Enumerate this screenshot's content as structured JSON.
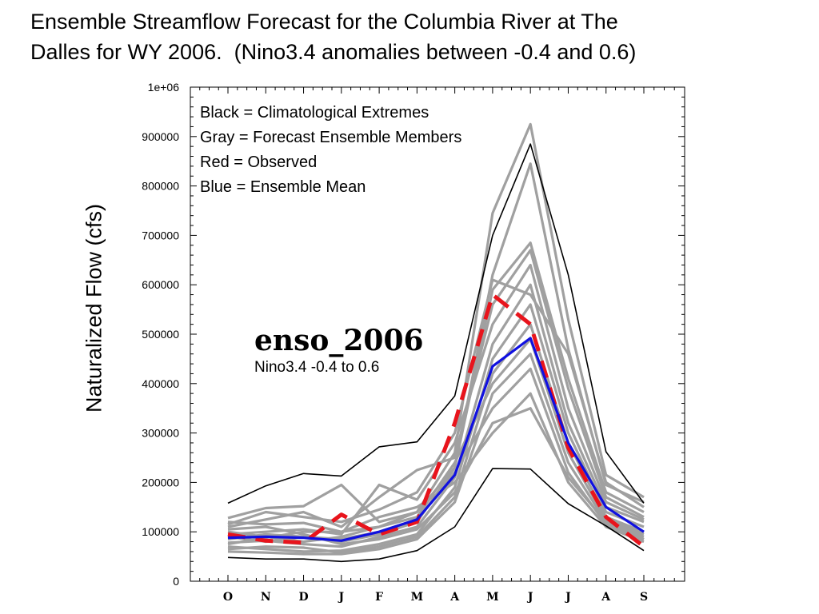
{
  "title_line1": "Ensemble Streamflow Forecast for the Columbia River at The",
  "title_line2": "Dalles for WY 2006.  (Nino3.4 anomalies between -0.4 and 0.6)",
  "chart_data": {
    "type": "line",
    "ylabel": "Naturalized Flow (cfs)",
    "ylim": [
      0,
      1000000
    ],
    "yticks": [
      0,
      100000,
      200000,
      300000,
      400000,
      500000,
      600000,
      700000,
      800000,
      900000,
      1000000
    ],
    "ytick_labels": [
      "0",
      "100000",
      "200000",
      "300000",
      "400000",
      "500000",
      "600000",
      "700000",
      "800000",
      "900000",
      "1e+06"
    ],
    "categories": [
      "O",
      "N",
      "D",
      "J",
      "F",
      "M",
      "A",
      "M",
      "J",
      "J",
      "A",
      "S"
    ],
    "legend": [
      "Black = Climatological Extremes",
      "Gray = Forecast Ensemble Members",
      "Red = Observed",
      "Blue = Ensemble Mean"
    ],
    "annotation_main": "enso_2006",
    "annotation_sub": "Nino3.4  -0.4 to 0.6",
    "colors": {
      "extremes": "#000000",
      "members": "#a0a0a0",
      "observed": "#e8141c",
      "mean": "#1010e0"
    },
    "series": [
      {
        "name": "Climatological Extremes",
        "role": "extremes",
        "values": [
          158000,
          193000,
          218000,
          213000,
          272000,
          282000,
          375000,
          700000,
          885000,
          620000,
          262000,
          158000
        ]
      },
      {
        "name": "Climatological Extremes",
        "role": "extremes",
        "values": [
          48000,
          45000,
          45000,
          40000,
          45000,
          62000,
          110000,
          228000,
          227000,
          157000,
          112000,
          62000
        ]
      },
      {
        "name": "Forecast Ensemble Members",
        "role": "members",
        "values": [
          120000,
          115000,
          118000,
          100000,
          110000,
          140000,
          260000,
          745000,
          925000,
          530000,
          215000,
          170000
        ]
      },
      {
        "name": "Forecast Ensemble Members",
        "role": "members",
        "values": [
          85000,
          95000,
          90000,
          80000,
          95000,
          120000,
          230000,
          620000,
          845000,
          470000,
          195000,
          160000
        ]
      },
      {
        "name": "Forecast Ensemble Members",
        "role": "members",
        "values": [
          128000,
          148000,
          152000,
          195000,
          120000,
          140000,
          230000,
          590000,
          685000,
          410000,
          180000,
          140000
        ]
      },
      {
        "name": "Forecast Ensemble Members",
        "role": "members",
        "values": [
          110000,
          125000,
          140000,
          110000,
          170000,
          225000,
          250000,
          560000,
          670000,
          390000,
          170000,
          130000
        ]
      },
      {
        "name": "Forecast Ensemble Members",
        "role": "members",
        "values": [
          95000,
          100000,
          105000,
          95000,
          195000,
          165000,
          280000,
          520000,
          640000,
          350000,
          160000,
          125000
        ]
      },
      {
        "name": "Forecast Ensemble Members",
        "role": "members",
        "values": [
          78000,
          82000,
          75000,
          70000,
          90000,
          110000,
          210000,
          480000,
          600000,
          320000,
          150000,
          120000
        ]
      },
      {
        "name": "Forecast Ensemble Members",
        "role": "members",
        "values": [
          70000,
          65000,
          60000,
          62000,
          75000,
          95000,
          190000,
          450000,
          560000,
          300000,
          140000,
          110000
        ]
      },
      {
        "name": "Forecast Ensemble Members",
        "role": "members",
        "values": [
          65000,
          70000,
          68000,
          58000,
          70000,
          90000,
          170000,
          420000,
          520000,
          280000,
          130000,
          100000
        ]
      },
      {
        "name": "Forecast Ensemble Members",
        "role": "members",
        "values": [
          100000,
          90000,
          80000,
          90000,
          110000,
          130000,
          240000,
          400000,
          490000,
          260000,
          125000,
          95000
        ]
      },
      {
        "name": "Forecast Ensemble Members",
        "role": "members",
        "values": [
          60000,
          58000,
          55000,
          55000,
          65000,
          85000,
          160000,
          380000,
          460000,
          240000,
          120000,
          90000
        ]
      },
      {
        "name": "Forecast Ensemble Members",
        "role": "members",
        "values": [
          90000,
          80000,
          90000,
          85000,
          100000,
          125000,
          220000,
          350000,
          430000,
          220000,
          115000,
          85000
        ]
      },
      {
        "name": "Forecast Ensemble Members",
        "role": "members",
        "values": [
          75000,
          88000,
          100000,
          100000,
          130000,
          150000,
          200000,
          300000,
          380000,
          200000,
          110000,
          80000
        ]
      },
      {
        "name": "Forecast Ensemble Members",
        "role": "members",
        "values": [
          105000,
          110000,
          95000,
          75000,
          85000,
          105000,
          180000,
          320000,
          350000,
          210000,
          120000,
          85000
        ]
      },
      {
        "name": "Forecast Ensemble Members",
        "role": "members",
        "values": [
          115000,
          140000,
          130000,
          120000,
          145000,
          180000,
          300000,
          610000,
          580000,
          460000,
          200000,
          150000
        ]
      },
      {
        "name": "Observed",
        "role": "observed",
        "values": [
          95000,
          82000,
          78000,
          135000,
          95000,
          120000,
          320000,
          580000,
          520000,
          270000,
          130000,
          70000
        ]
      },
      {
        "name": "Ensemble Mean",
        "role": "mean",
        "values": [
          88000,
          90000,
          88000,
          82000,
          100000,
          125000,
          215000,
          435000,
          492000,
          280000,
          150000,
          100000
        ]
      }
    ]
  }
}
